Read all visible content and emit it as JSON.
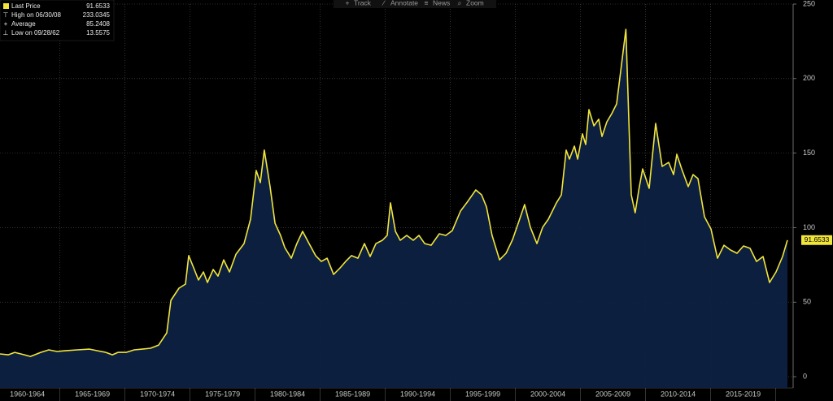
{
  "toolbar": [
    "Track",
    "Annotate",
    "News",
    "Zoom"
  ],
  "legend": [
    {
      "label": "Last Price",
      "value": 91.6533
    },
    {
      "label": "High on 06/30/08",
      "value": 233.0345
    },
    {
      "label": "Average",
      "value": 85.2408
    },
    {
      "label": "Low on 09/28/62",
      "value": 13.5575
    }
  ],
  "chart_data": {
    "type": "line",
    "xlim": [
      1960.4,
      2021.34
    ],
    "ylim": [
      -7.6,
      250
    ],
    "yticks": [
      0,
      50,
      100,
      150,
      200,
      250
    ],
    "xticks": [
      {
        "value": 1962.5,
        "label": "1960-1964"
      },
      {
        "value": 1967.5,
        "label": "1965-1969"
      },
      {
        "value": 1972.5,
        "label": "1970-1974"
      },
      {
        "value": 1977.5,
        "label": "1975-1979"
      },
      {
        "value": 1982.5,
        "label": "1980-1984"
      },
      {
        "value": 1987.5,
        "label": "1985-1989"
      },
      {
        "value": 1992.5,
        "label": "1990-1994"
      },
      {
        "value": 1997.5,
        "label": "1995-1999"
      },
      {
        "value": 2002.5,
        "label": "2000-2004"
      },
      {
        "value": 2007.5,
        "label": "2005-2009"
      },
      {
        "value": 2012.5,
        "label": "2010-2014"
      },
      {
        "value": 2017.5,
        "label": "2015-2019"
      }
    ],
    "grid": true,
    "series": [
      {
        "name": "Last Price",
        "color": "#f2e53a",
        "fill": "#0d2142",
        "x": [
          1960.4,
          1961.03,
          1961.53,
          1962.28,
          1962.74,
          1963.53,
          1964.15,
          1964.78,
          1965.4,
          1966.34,
          1967.28,
          1967.9,
          1968.53,
          1969.03,
          1969.46,
          1970.09,
          1970.71,
          1971.34,
          1971.96,
          1972.59,
          1973.21,
          1973.53,
          1974.15,
          1974.65,
          1974.9,
          1975.28,
          1975.65,
          1976.03,
          1976.34,
          1976.78,
          1977.15,
          1977.59,
          1978.03,
          1978.53,
          1979.15,
          1979.65,
          1980.09,
          1980.4,
          1980.71,
          1981.15,
          1981.53,
          1981.96,
          1982.28,
          1982.78,
          1983.21,
          1983.65,
          1984.15,
          1984.65,
          1985.09,
          1985.53,
          1986.03,
          1986.53,
          1986.96,
          1987.4,
          1987.9,
          1988.4,
          1988.84,
          1989.28,
          1989.78,
          1990.15,
          1990.4,
          1990.78,
          1991.15,
          1991.65,
          1992.15,
          1992.59,
          1993.03,
          1993.53,
          1994.15,
          1994.65,
          1995.15,
          1995.78,
          1996.34,
          1996.96,
          1997.4,
          1997.78,
          1998.21,
          1998.78,
          1999.28,
          1999.78,
          2000.28,
          2000.71,
          2001.15,
          2001.65,
          2002.09,
          2002.53,
          2003.15,
          2003.53,
          2003.9,
          2004.15,
          2004.53,
          2004.78,
          2005.15,
          2005.4,
          2005.65,
          2006.03,
          2006.4,
          2006.65,
          2007.03,
          2007.4,
          2007.78,
          2008.49,
          2008.9,
          2009.2,
          2009.5,
          2009.78,
          2010.28,
          2010.78,
          2011.28,
          2011.78,
          2012.15,
          2012.4,
          2012.78,
          2013.28,
          2013.65,
          2014.03,
          2014.53,
          2015.03,
          2015.53,
          2016.03,
          2016.53,
          2017.03,
          2017.53,
          2018.03,
          2018.53,
          2019.03,
          2019.53,
          2020.03,
          2020.53,
          2020.9
        ],
        "values": [
          15.3,
          14.7,
          16.3,
          14.7,
          13.6,
          16.3,
          18.0,
          16.9,
          17.4,
          18.0,
          18.5,
          17.4,
          16.3,
          14.7,
          16.3,
          16.3,
          18.0,
          18.5,
          19.1,
          21.2,
          29.4,
          51.2,
          59.4,
          62.1,
          81.2,
          73.0,
          64.9,
          70.3,
          63.2,
          71.9,
          67.5,
          78.4,
          70.3,
          82.2,
          89.3,
          105.7,
          138.3,
          130.2,
          152.0,
          127.5,
          102.9,
          94.8,
          86.6,
          79.5,
          89.3,
          97.5,
          89.3,
          81.2,
          77.3,
          79.5,
          68.6,
          73.0,
          77.3,
          81.2,
          79.5,
          89.3,
          80.6,
          89.3,
          91.5,
          94.8,
          116.6,
          97.5,
          91.5,
          94.8,
          91.5,
          94.8,
          89.3,
          88.2,
          95.9,
          94.8,
          98.0,
          111.1,
          117.6,
          125.3,
          122.0,
          113.8,
          94.8,
          78.4,
          82.8,
          92.0,
          104.6,
          115.5,
          100.2,
          89.3,
          100.2,
          105.7,
          116.6,
          122.0,
          152.0,
          146.0,
          154.7,
          146.0,
          162.9,
          155.8,
          179.2,
          168.3,
          172.7,
          161.2,
          171.0,
          176.5,
          183.0,
          233.0,
          122.0,
          110.0,
          126.4,
          139.4,
          126.4,
          169.9,
          141.1,
          143.8,
          135.6,
          149.2,
          139.4,
          127.5,
          135.6,
          132.9,
          107.3,
          99.1,
          79.5,
          88.2,
          85.0,
          82.8,
          87.7,
          86.1,
          77.3,
          80.6,
          63.2,
          70.3,
          80.6,
          91.6533
        ]
      }
    ]
  }
}
